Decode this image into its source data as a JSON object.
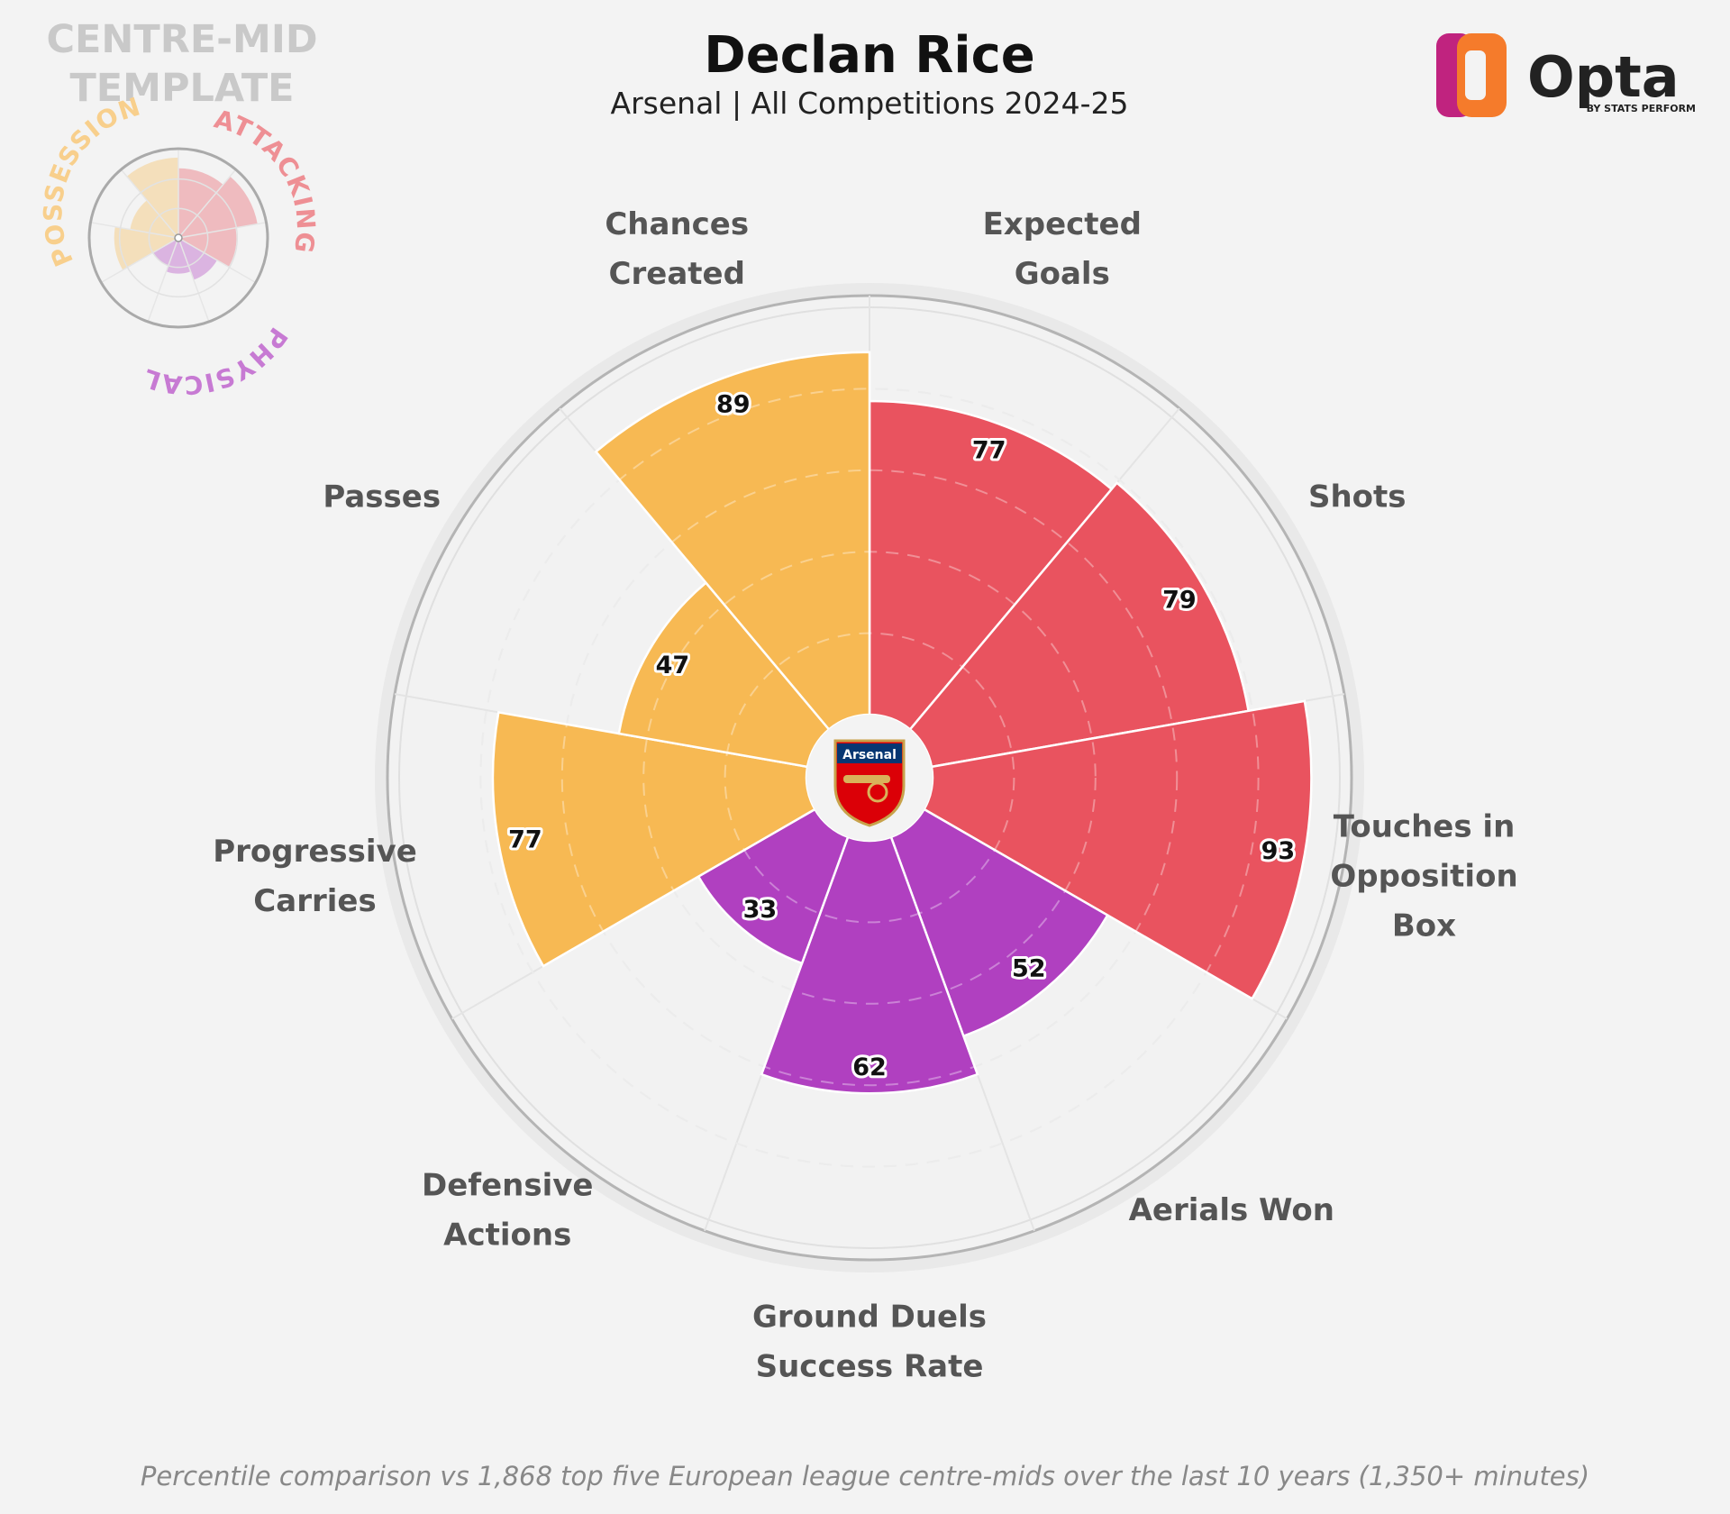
{
  "header": {
    "template_line1": "CENTRE-MID",
    "template_line2": "TEMPLATE",
    "title": "Declan Rice",
    "subtitle": "Arsenal | All Competitions 2024-25"
  },
  "mini_legend": {
    "possession": "POSSESSION",
    "attacking": "ATTACKING",
    "physical": "PHYSICAL"
  },
  "logo": {
    "word": "Opta",
    "by_line": "BY STATS PERFORM"
  },
  "crest": {
    "club": "Arsenal"
  },
  "footnote": "Percentile comparison vs 1,868 top five European league centre-mids over the last 10 years (1,350+ minutes)",
  "colors": {
    "attacking": "#e9535f",
    "physical": "#b040c0",
    "possession": "#f7b953",
    "background": "#f3f3f3"
  },
  "chart_data": {
    "type": "polar-bar",
    "ylim": [
      0,
      100
    ],
    "categories": [
      {
        "name": "attacking",
        "color": "#e9535f"
      },
      {
        "name": "physical",
        "color": "#b040c0"
      },
      {
        "name": "possession",
        "color": "#f7b953"
      }
    ],
    "metrics": [
      {
        "label": [
          "Expected",
          "Goals"
        ],
        "value": 77,
        "group": "attacking"
      },
      {
        "label": [
          "Shots"
        ],
        "value": 79,
        "group": "attacking"
      },
      {
        "label": [
          "Touches in",
          "Opposition",
          "Box"
        ],
        "value": 93,
        "group": "attacking"
      },
      {
        "label": [
          "Aerials Won"
        ],
        "value": 52,
        "group": "physical"
      },
      {
        "label": [
          "Ground Duels",
          "Success Rate"
        ],
        "value": 62,
        "group": "physical"
      },
      {
        "label": [
          "Defensive",
          "Actions"
        ],
        "value": 33,
        "group": "physical"
      },
      {
        "label": [
          "Progressive",
          "Carries"
        ],
        "value": 77,
        "group": "possession"
      },
      {
        "label": [
          "Passes"
        ],
        "value": 47,
        "group": "possession"
      },
      {
        "label": [
          "Chances",
          "Created"
        ],
        "value": 89,
        "group": "possession"
      }
    ]
  }
}
